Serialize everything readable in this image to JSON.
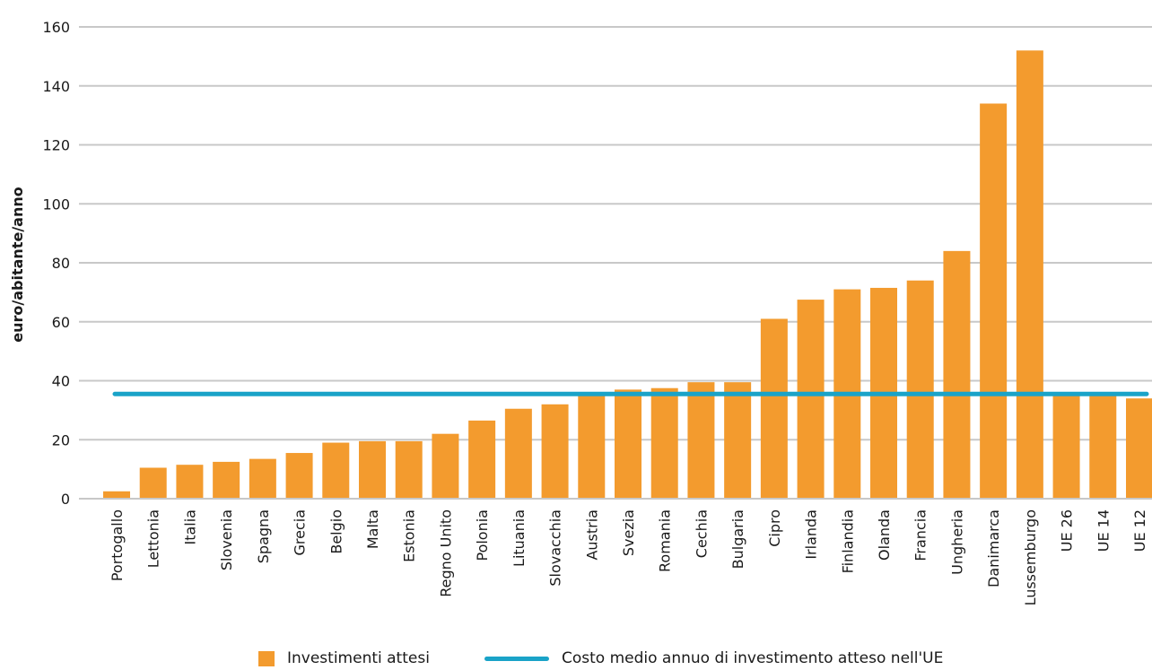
{
  "chart_data": {
    "type": "bar",
    "categories": [
      "Portogallo",
      "Lettonia",
      "Italia",
      "Slovenia",
      "Spagna",
      "Grecia",
      "Belgio",
      "Malta",
      "Estonia",
      "Regno Unito",
      "Polonia",
      "Lituania",
      "Slovacchia",
      "Austria",
      "Svezia",
      "Romania",
      "Cechia",
      "Bulgaria",
      "Cipro",
      "Irlanda",
      "Finlandia",
      "Olanda",
      "Francia",
      "Ungheria",
      "Danimarca",
      "Lussemburgo",
      "UE 26",
      "UE 14",
      "UE 12"
    ],
    "series": [
      {
        "name": "Investimenti attesi",
        "values": [
          2.5,
          10.5,
          11.5,
          12.5,
          13.5,
          15.5,
          19,
          19.5,
          19.5,
          22,
          26.5,
          30.5,
          32,
          36,
          37,
          37.5,
          39.5,
          39.5,
          61,
          67.5,
          71,
          71.5,
          74,
          84,
          134,
          152,
          35.5,
          35.5,
          34
        ],
        "color": "#f39b2e"
      }
    ],
    "reference_line": {
      "name": "Costo medio annuo di investimento atteso nell'UE",
      "value": 35.5,
      "color": "#1aa3c8"
    },
    "xlabel": "",
    "ylabel": "euro/abitante/anno",
    "ylim": [
      0,
      160
    ],
    "yticks": [
      0,
      20,
      40,
      60,
      80,
      100,
      120,
      140,
      160
    ],
    "grid": true,
    "legend_position": "bottom"
  },
  "legend": {
    "bar_label": "Investimenti attesi",
    "line_label": "Costo medio annuo di investimento atteso nell'UE"
  }
}
